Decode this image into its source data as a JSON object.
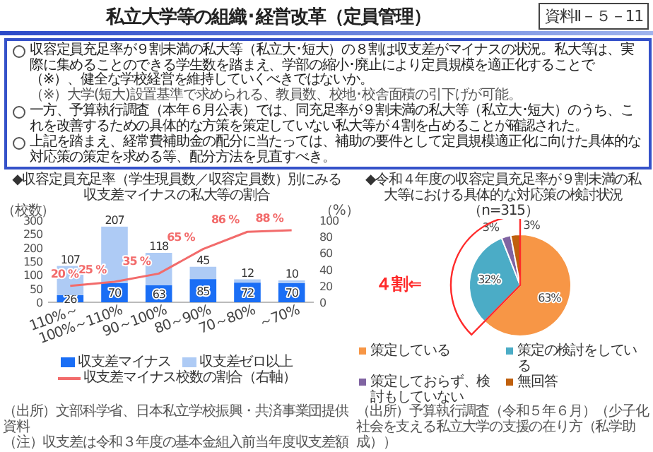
{
  "chart_data": [
    {
      "type": "other",
      "title": "私立大学等の組織･経営改革（定員管理）",
      "annotations": [
        "資料Ⅱ－５－11",
        "収容定員充足率が９割未満の私大等（私立大･短大）の８割は収支差がマイナスの状況。私大等は、実際に集めることのできる学生数を踏まえ、学部の縮小･廃止により定員規模を適正化することで（※）、健全な学校経営を維持していくべきではないか。",
        "（※）大学(短大)設置基準で求められる、教員数、校地･校舎面積の引下げが可能。",
        "一方、予算執行調査（本年６月公表）では、同充足率が９割未満の私大等（私立大･短大）のうち、これを改善するための具体的な方策を策定していない私大等が４割を占めることが確認された。",
        "上記を踏まえ、経常費補助金の配分に当たっては、補助の要件として定員規模適正化に向けた具体的な対応策の策定を求める等、配分方法を見直すべき。"
      ]
    },
    {
      "type": "bar",
      "stacked": true,
      "title": "◆収容定員充足率（学生現員数／収容定員数）別にみる",
      "subtitle": "収支差マイナスの私大等の割合",
      "ylabel": "（校数）",
      "y2label": "（%）",
      "categories": [
        "110%～",
        "100%～110%",
        "90～100%",
        "80～90%",
        "70～80%",
        "～70%"
      ],
      "series": [
        {
          "name": "収支差マイナス",
          "color": "#1a6ef5",
          "values": [
            26,
            70,
            63,
            85,
            72,
            70
          ]
        },
        {
          "name": "収支差ゼロ以上",
          "color": "#aecbf5",
          "values": [
            107,
            207,
            118,
            45,
            12,
            10
          ]
        },
        {
          "name": "収支差マイナス校数の割合（右軸）",
          "type": "line",
          "axis": "y2",
          "color": "#f26b6b",
          "values": [
            20,
            25,
            35,
            65,
            86,
            88
          ],
          "value_labels": [
            "20 %",
            "25 %",
            "35 %",
            "65 %",
            "86 %",
            "88 %"
          ]
        }
      ],
      "data_labels": true,
      "ylim": [
        0,
        300
      ],
      "yticks": [
        0,
        50,
        100,
        150,
        200,
        250,
        300
      ],
      "y2lim": [
        0,
        100
      ],
      "y2ticks": [
        0,
        20,
        40,
        60,
        80,
        100
      ],
      "legend": "bottom",
      "annotations": [
        "（出所）文部科学省、日本私立学校振興・共済事業団提供資料",
        "（注）収支差は令和３年度の基本金組入前当年度収支差額"
      ]
    },
    {
      "type": "pie",
      "title": "◆令和４年度の収容定員充足率が９割未満の私大等における具体的な対応策の検討状況（n=315）",
      "categories": [
        "策定している",
        "策定の検討をしている",
        "策定しておらず、検討もしていない",
        "無回答"
      ],
      "values": [
        63,
        32,
        3,
        3
      ],
      "value_labels": [
        "63%",
        "32%",
        "3%",
        "3%"
      ],
      "colors": [
        "#f79646",
        "#4bacc6",
        "#8064a2",
        "#c0600d"
      ],
      "legend": "bottom",
      "annotations": [
        "４割⇐",
        "（出所）予算執行調査（令和５年６月）（少子化社会を支える私立大学の支援の在り方（私学助成））"
      ]
    }
  ]
}
